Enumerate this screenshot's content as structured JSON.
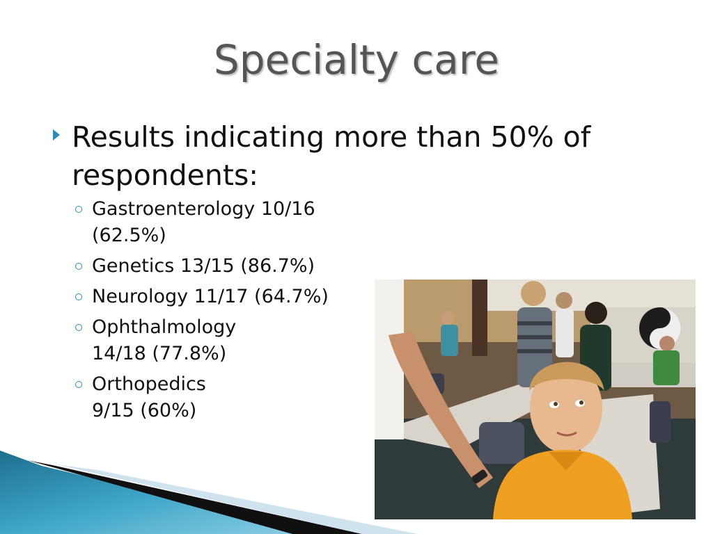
{
  "slide": {
    "title": "Specialty care",
    "main_bullet": "Results indicating more than 50% of respondents:",
    "sub_bullets": [
      {
        "text": "Gastroenterology  10/16 (62.5%)"
      },
      {
        "text": "Genetics 13/15 (86.7%)"
      },
      {
        "text": "Neurology 11/17 (64.7%)"
      },
      {
        "text": "Ophthalmology\n14/18 (77.8%)"
      },
      {
        "text": "Orthopedics\n9/15 (60%)"
      }
    ]
  },
  "colors": {
    "accent": "#2b8bb4",
    "title": "#555555",
    "body_text": "#111111"
  },
  "icons": {
    "main_bullet": "triangle-arrow-icon",
    "sub_bullet": "hollow-circle-icon"
  }
}
